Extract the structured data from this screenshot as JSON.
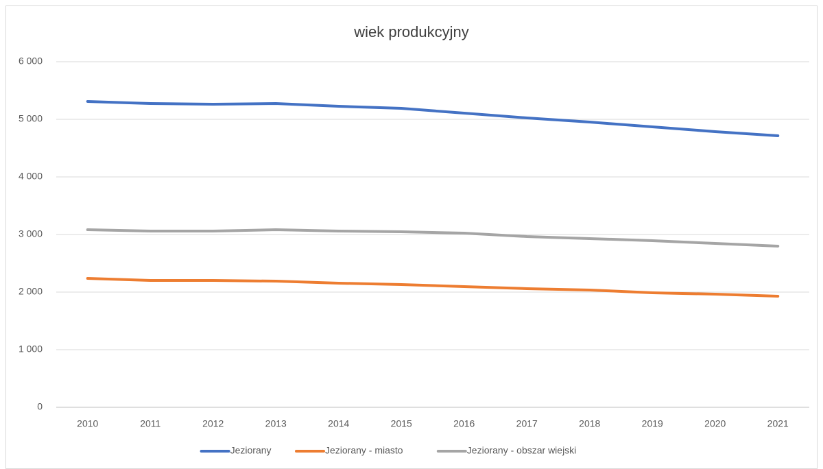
{
  "chart_data": {
    "type": "line",
    "title": "wiek produkcyjny",
    "categories": [
      "2010",
      "2011",
      "2012",
      "2013",
      "2014",
      "2015",
      "2016",
      "2017",
      "2018",
      "2019",
      "2020",
      "2021"
    ],
    "series": [
      {
        "name": "Jeziorany",
        "color": "#4472c4",
        "values": [
          5310,
          5274,
          5262,
          5274,
          5226,
          5190,
          5107,
          5024,
          4952,
          4869,
          4786,
          4714
        ]
      },
      {
        "name": "Jeziorany - miasto",
        "color": "#ed7d31",
        "values": [
          2238,
          2202,
          2202,
          2190,
          2155,
          2131,
          2095,
          2060,
          2036,
          1988,
          1964,
          1929
        ]
      },
      {
        "name": "Jeziorany - obszar wiejski",
        "color": "#a5a5a5",
        "values": [
          3083,
          3060,
          3060,
          3083,
          3060,
          3048,
          3024,
          2964,
          2929,
          2893,
          2845,
          2798
        ]
      }
    ],
    "ylim": [
      0,
      6000
    ],
    "yticks": [
      0,
      {
        "value": 1000,
        "label": "1 000"
      },
      {
        "value": 2000,
        "label": "2 000"
      },
      {
        "value": 3000,
        "label": "3 000"
      },
      {
        "value": 4000,
        "label": "4 000"
      },
      {
        "value": 5000,
        "label": "5 000"
      },
      {
        "value": 6000,
        "label": "6 000"
      }
    ],
    "grid": true,
    "legend": "bottom"
  }
}
